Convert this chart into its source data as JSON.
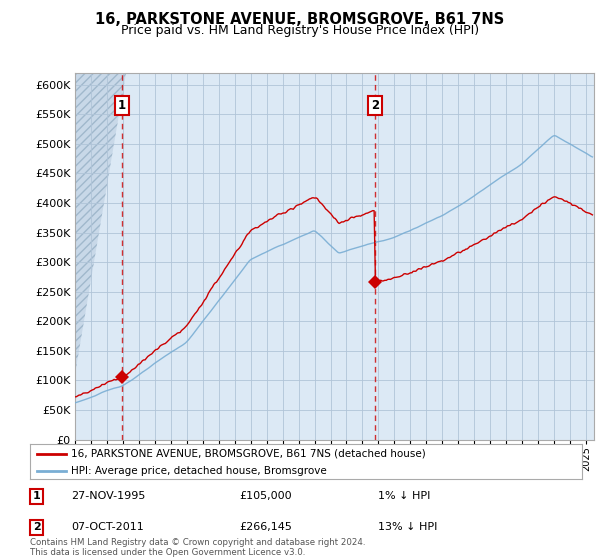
{
  "title": "16, PARKSTONE AVENUE, BROMSGROVE, B61 7NS",
  "subtitle": "Price paid vs. HM Land Registry's House Price Index (HPI)",
  "ylim": [
    0,
    620000
  ],
  "yticks": [
    0,
    50000,
    100000,
    150000,
    200000,
    250000,
    300000,
    350000,
    400000,
    450000,
    500000,
    550000,
    600000
  ],
  "ytick_labels": [
    "£0",
    "£50K",
    "£100K",
    "£150K",
    "£200K",
    "£250K",
    "£300K",
    "£350K",
    "£400K",
    "£450K",
    "£500K",
    "£550K",
    "£600K"
  ],
  "xlim_start": 1993.0,
  "xlim_end": 2025.5,
  "sale1_x": 1995.92,
  "sale1_y": 105000,
  "sale1_label": "1",
  "sale2_x": 2011.77,
  "sale2_y": 266145,
  "sale2_label": "2",
  "line_color_red": "#cc0000",
  "line_color_blue": "#7aaed4",
  "dot_color": "#cc0000",
  "background_color": "#dce9f5",
  "hatch_area_color": "#c8d8e8",
  "grid_color": "#b0c4d8",
  "legend_line1": "16, PARKSTONE AVENUE, BROMSGROVE, B61 7NS (detached house)",
  "legend_line2": "HPI: Average price, detached house, Bromsgrove",
  "annotation1_date": "27-NOV-1995",
  "annotation1_price": "£105,000",
  "annotation1_hpi": "1% ↓ HPI",
  "annotation2_date": "07-OCT-2011",
  "annotation2_price": "£266,145",
  "annotation2_hpi": "13% ↓ HPI",
  "footer": "Contains HM Land Registry data © Crown copyright and database right 2024.\nThis data is licensed under the Open Government Licence v3.0.",
  "title_fontsize": 10.5,
  "subtitle_fontsize": 9
}
